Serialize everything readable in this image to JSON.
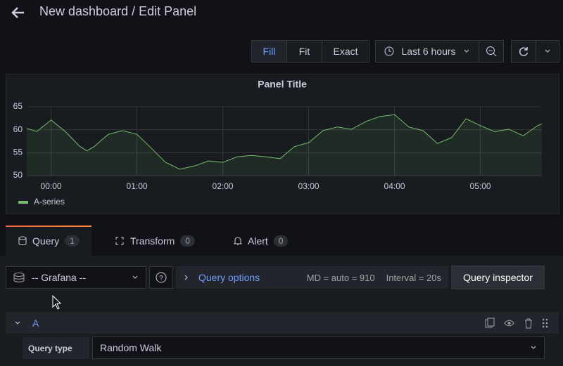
{
  "header": {
    "title": "New dashboard / Edit Panel"
  },
  "toolbar": {
    "fill": "Fill",
    "fit": "Fit",
    "exact": "Exact",
    "time_range": "Last 6 hours"
  },
  "chart_data": {
    "type": "line",
    "title": "Panel Title",
    "x": [
      -17,
      -10,
      0,
      10,
      20,
      25,
      30,
      40,
      50,
      60,
      70,
      80,
      90,
      100,
      110,
      120,
      130,
      140,
      150,
      160,
      170,
      180,
      190,
      200,
      210,
      220,
      230,
      240,
      250,
      260,
      270,
      280,
      290,
      300,
      310,
      320,
      330,
      340,
      343
    ],
    "series": [
      {
        "name": "A-series",
        "color": "#73bf69",
        "values": [
          60.3,
          59.6,
          62.1,
          59.6,
          56.4,
          55.4,
          56.3,
          59.0,
          59.8,
          59.0,
          56.0,
          52.9,
          51.4,
          52.1,
          53.2,
          52.9,
          54.1,
          54.4,
          54.1,
          53.7,
          56.3,
          57.2,
          59.8,
          60.6,
          60.1,
          61.8,
          62.9,
          63.3,
          60.6,
          59.8,
          57.0,
          58.3,
          62.4,
          60.9,
          59.6,
          60.1,
          58.7,
          60.9,
          61.3
        ]
      }
    ],
    "xlim": [
      -17,
      343
    ],
    "xticks": [
      {
        "value": 0,
        "label": "00:00"
      },
      {
        "value": 60,
        "label": "01:00"
      },
      {
        "value": 120,
        "label": "02:00"
      },
      {
        "value": 180,
        "label": "03:00"
      },
      {
        "value": 240,
        "label": "04:00"
      },
      {
        "value": 300,
        "label": "05:00"
      }
    ],
    "ylim": [
      50,
      65
    ],
    "yticks": [
      50,
      55,
      60,
      65
    ],
    "grid": true
  },
  "tabs": [
    {
      "label": "Query",
      "count": 1
    },
    {
      "label": "Transform",
      "count": 0
    },
    {
      "label": "Alert",
      "count": 0
    }
  ],
  "query": {
    "datasource": "-- Grafana --",
    "options": "Query options",
    "md": "MD = auto = 910",
    "interval": "Interval = 20s",
    "inspector": "Query inspector",
    "refid": "A",
    "query_type_label": "Query type",
    "query_type": "Random Walk"
  }
}
